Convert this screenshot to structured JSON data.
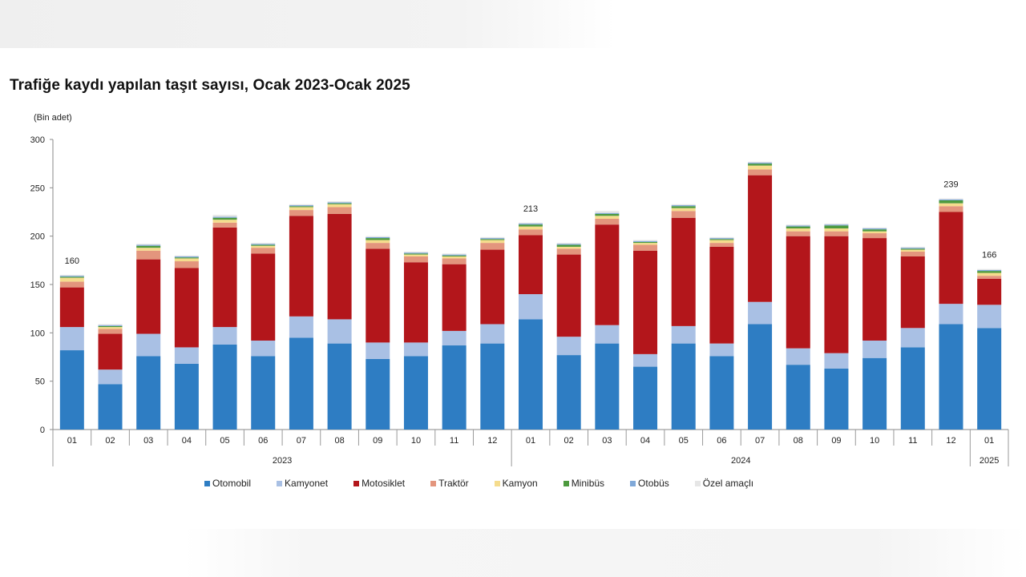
{
  "title": "Trafiğe kaydı yapılan taşıt sayısı, Ocak 2023-Ocak 2025",
  "unit_label": "(Bin adet)",
  "chart_data": {
    "type": "bar",
    "stacked": true,
    "ylim": [
      0,
      300
    ],
    "yticks": [
      "0",
      "50",
      "100",
      "150",
      "200",
      "250",
      "300"
    ],
    "categories": [
      "01",
      "02",
      "03",
      "04",
      "05",
      "06",
      "07",
      "08",
      "09",
      "10",
      "11",
      "12",
      "01",
      "02",
      "03",
      "04",
      "05",
      "06",
      "07",
      "08",
      "09",
      "10",
      "11",
      "12",
      "01"
    ],
    "year_groups": [
      {
        "label": "2023",
        "start": 0,
        "end": 11
      },
      {
        "label": "2024",
        "start": 12,
        "end": 23
      },
      {
        "label": "2025",
        "start": 24,
        "end": 24
      }
    ],
    "series": [
      {
        "name": "Otomobil",
        "color": "#2e7dc3",
        "values": [
          82,
          47,
          76,
          68,
          88,
          76,
          95,
          89,
          73,
          76,
          87,
          89,
          114,
          77,
          89,
          65,
          89,
          76,
          109,
          67,
          63,
          74,
          85,
          109,
          105
        ]
      },
      {
        "name": "Kamyonet",
        "color": "#a9c0e4",
        "values": [
          24,
          15,
          23,
          17,
          18,
          16,
          22,
          25,
          17,
          14,
          15,
          20,
          26,
          19,
          19,
          13,
          18,
          13,
          23,
          17,
          16,
          18,
          20,
          21,
          24
        ]
      },
      {
        "name": "Motosiklet",
        "color": "#b3161b",
        "values": [
          41,
          37,
          77,
          82,
          103,
          90,
          104,
          109,
          97,
          83,
          69,
          77,
          61,
          85,
          104,
          107,
          112,
          100,
          131,
          116,
          121,
          106,
          74,
          95,
          27
        ]
      },
      {
        "name": "Traktör",
        "color": "#e3957d",
        "values": [
          6,
          5,
          9,
          7,
          5,
          6,
          6,
          7,
          6,
          6,
          6,
          7,
          6,
          6,
          6,
          6,
          7,
          4,
          6,
          5,
          5,
          5,
          5,
          6,
          3
        ]
      },
      {
        "name": "Kamyon",
        "color": "#f5dc8d",
        "values": [
          4,
          2,
          3,
          3,
          3,
          2,
          3,
          3,
          3,
          2,
          2,
          3,
          3,
          2,
          3,
          2,
          3,
          3,
          4,
          3,
          3,
          2,
          2,
          3,
          3
        ]
      },
      {
        "name": "Minibüs",
        "color": "#4d9a3e",
        "values": [
          1,
          1,
          2,
          1,
          2,
          1,
          1,
          1,
          2,
          1,
          1,
          1,
          2,
          2,
          2,
          1,
          2,
          1,
          2,
          2,
          3,
          2,
          1,
          3,
          2
        ]
      },
      {
        "name": "Otobüs",
        "color": "#7fa8d8",
        "values": [
          1,
          1,
          1,
          1,
          1,
          1,
          1,
          1,
          1,
          1,
          1,
          1,
          1,
          1,
          1,
          1,
          1,
          1,
          1,
          1,
          1,
          1,
          1,
          1,
          1
        ]
      },
      {
        "name": "Özel amaçlı",
        "color": "#e6e6e6",
        "values": [
          1,
          1,
          1,
          1,
          2,
          1,
          1,
          1,
          1,
          1,
          1,
          1,
          1,
          1,
          2,
          1,
          1,
          1,
          1,
          1,
          1,
          1,
          1,
          1,
          1
        ]
      }
    ],
    "data_labels": [
      {
        "index": 0,
        "text": "160"
      },
      {
        "index": 12,
        "text": "213"
      },
      {
        "index": 23,
        "text": "239"
      },
      {
        "index": 24,
        "text": "166"
      }
    ],
    "legend_position": "bottom"
  }
}
